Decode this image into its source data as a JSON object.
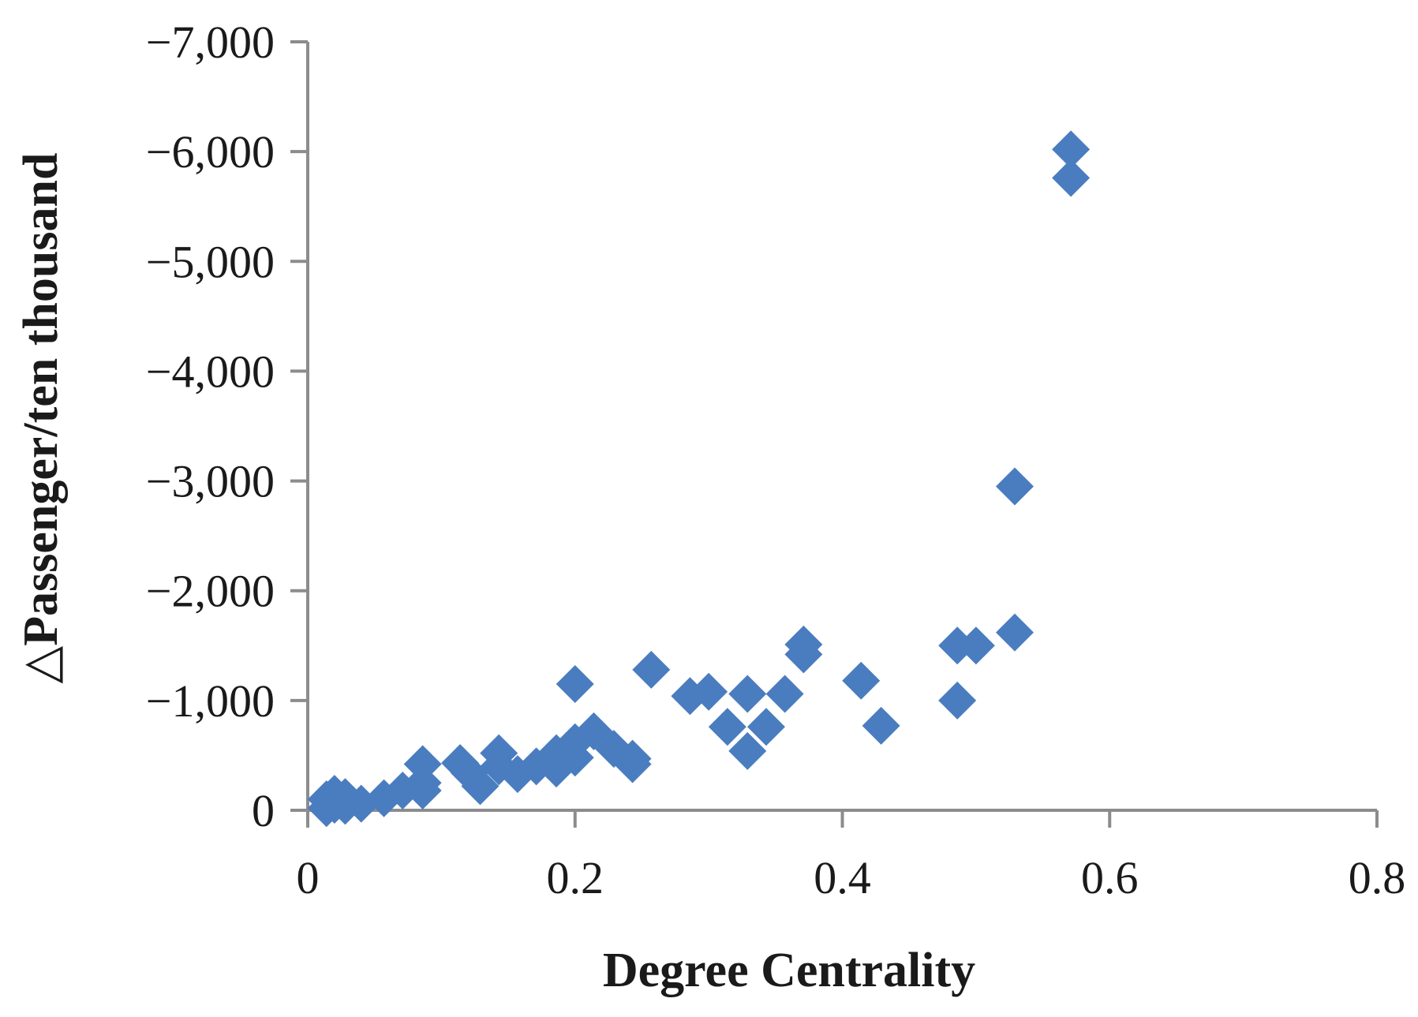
{
  "chart_data": {
    "type": "scatter",
    "title": "",
    "xlabel": "Degree Centrality",
    "ylabel": "△Passenger/ten thousand",
    "xlim": [
      0,
      0.8
    ],
    "ylim": [
      0,
      -7000
    ],
    "x_ticks": [
      0,
      0.2,
      0.4,
      0.6,
      0.8
    ],
    "x_tick_labels": [
      "0",
      "0.2",
      "0.4",
      "0.6",
      "0.8"
    ],
    "y_ticks": [
      0,
      -1000,
      -2000,
      -3000,
      -4000,
      -5000,
      -6000,
      -7000
    ],
    "y_tick_labels": [
      "0",
      "−1,000",
      "−2,000",
      "−3,000",
      "−4,000",
      "−5,000",
      "−6,000",
      "−7,000"
    ],
    "grid": false,
    "legend": "none",
    "marker": "diamond",
    "marker_color": "#4a7dbf",
    "axis_color": "#8c8c8c",
    "series": [
      {
        "points": [
          [
            0.014,
            -100
          ],
          [
            0.014,
            -20
          ],
          [
            0.02,
            -150
          ],
          [
            0.02,
            -50
          ],
          [
            0.028,
            -120
          ],
          [
            0.028,
            -40
          ],
          [
            0.04,
            -60
          ],
          [
            0.057,
            -110
          ],
          [
            0.071,
            -180
          ],
          [
            0.086,
            -420
          ],
          [
            0.086,
            -250
          ],
          [
            0.086,
            -180
          ],
          [
            0.114,
            -430
          ],
          [
            0.121,
            -340
          ],
          [
            0.129,
            -220
          ],
          [
            0.143,
            -520
          ],
          [
            0.143,
            -400
          ],
          [
            0.157,
            -330
          ],
          [
            0.171,
            -400
          ],
          [
            0.186,
            -520
          ],
          [
            0.186,
            -380
          ],
          [
            0.2,
            -1150
          ],
          [
            0.2,
            -620
          ],
          [
            0.2,
            -480
          ],
          [
            0.214,
            -720
          ],
          [
            0.229,
            -560
          ],
          [
            0.243,
            -470
          ],
          [
            0.243,
            -420
          ],
          [
            0.257,
            -1280
          ],
          [
            0.286,
            -1040
          ],
          [
            0.3,
            -1080
          ],
          [
            0.314,
            -760
          ],
          [
            0.329,
            -1060
          ],
          [
            0.329,
            -540
          ],
          [
            0.343,
            -760
          ],
          [
            0.357,
            -1060
          ],
          [
            0.371,
            -1510
          ],
          [
            0.371,
            -1420
          ],
          [
            0.414,
            -1180
          ],
          [
            0.429,
            -770
          ],
          [
            0.486,
            -1500
          ],
          [
            0.486,
            -1000
          ],
          [
            0.5,
            -1500
          ],
          [
            0.529,
            -2950
          ],
          [
            0.529,
            -1620
          ],
          [
            0.571,
            -6020
          ],
          [
            0.571,
            -5760
          ]
        ]
      }
    ]
  }
}
